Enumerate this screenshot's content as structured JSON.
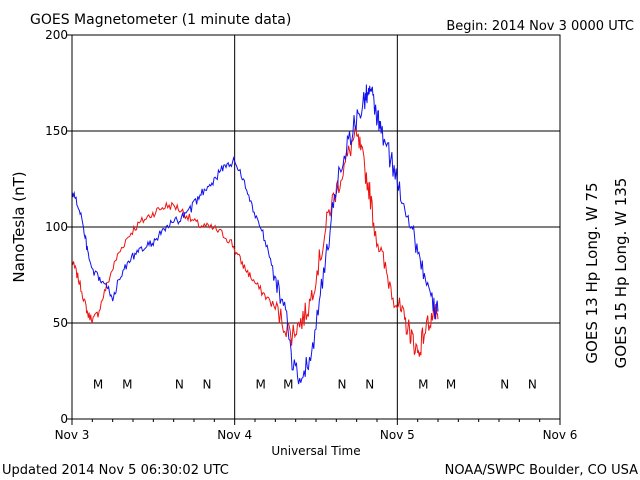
{
  "header": {
    "title": "GOES Magnetometer (1 minute data)",
    "begin": "Begin:  2014 Nov 3 0000 UTC"
  },
  "footer": {
    "updated": "Updated 2014 Nov  5 06:30:02 UTC",
    "credit": "NOAA/SWPC Boulder, CO USA"
  },
  "colors": {
    "goes13": "#ee1111",
    "goes15": "#1111ee",
    "grid": "#000000"
  },
  "chart_data": {
    "type": "line",
    "title": "GOES Magnetometer (1 minute data)",
    "xlabel": "Universal Time",
    "ylabel": "NanoTesla (nT)",
    "x_unit": "days since 2014 Nov 3 00:00 UTC",
    "xlim": [
      0,
      3
    ],
    "ylim": [
      0,
      200
    ],
    "x_ticks": [
      {
        "x": 0,
        "label": "Nov 3"
      },
      {
        "x": 1,
        "label": "Nov 4"
      },
      {
        "x": 2,
        "label": "Nov 5"
      },
      {
        "x": 3,
        "label": "Nov 6"
      }
    ],
    "y_ticks": [
      0,
      50,
      100,
      150,
      200
    ],
    "grid": true,
    "legend_placement": "right, vertical",
    "series": [
      {
        "name": "GOES 13 Hp  Long. W 75",
        "color": "#ee1111",
        "x": [
          0.0,
          0.02,
          0.05,
          0.08,
          0.1,
          0.13,
          0.16,
          0.2,
          0.24,
          0.28,
          0.33,
          0.38,
          0.43,
          0.48,
          0.53,
          0.58,
          0.63,
          0.68,
          0.73,
          0.78,
          0.83,
          0.88,
          0.93,
          0.98,
          1.02,
          1.06,
          1.1,
          1.15,
          1.2,
          1.25,
          1.3,
          1.35,
          1.38,
          1.42,
          1.46,
          1.5,
          1.54,
          1.58,
          1.62,
          1.66,
          1.7,
          1.74,
          1.77,
          1.8,
          1.83,
          1.86,
          1.9,
          1.94,
          1.98,
          2.02,
          2.05,
          2.08,
          2.1,
          2.13,
          2.16,
          2.2,
          2.23,
          2.25
        ],
        "values": [
          82,
          78,
          70,
          60,
          54,
          52,
          55,
          66,
          76,
          85,
          93,
          99,
          103,
          106,
          109,
          111,
          111,
          108,
          104,
          101,
          100,
          99,
          96,
          92,
          85,
          79,
          74,
          68,
          63,
          58,
          50,
          44,
          48,
          52,
          60,
          75,
          90,
          108,
          118,
          128,
          138,
          148,
          142,
          130,
          118,
          100,
          86,
          74,
          64,
          56,
          50,
          45,
          40,
          34,
          44,
          52,
          55,
          52
        ]
      },
      {
        "name": "GOES 15 Hp  Long. W 135",
        "color": "#1111ee",
        "x": [
          0.0,
          0.02,
          0.05,
          0.08,
          0.1,
          0.13,
          0.16,
          0.19,
          0.22,
          0.25,
          0.28,
          0.32,
          0.36,
          0.4,
          0.44,
          0.48,
          0.52,
          0.56,
          0.6,
          0.64,
          0.68,
          0.72,
          0.76,
          0.8,
          0.84,
          0.88,
          0.92,
          0.96,
          1.0,
          1.04,
          1.08,
          1.12,
          1.16,
          1.2,
          1.24,
          1.28,
          1.32,
          1.36,
          1.4,
          1.44,
          1.48,
          1.52,
          1.56,
          1.6,
          1.64,
          1.68,
          1.72,
          1.76,
          1.8,
          1.82,
          1.84,
          1.86,
          1.88,
          1.9,
          1.94,
          1.98,
          2.02,
          2.06,
          2.1,
          2.14,
          2.18,
          2.22,
          2.25
        ],
        "values": [
          118,
          115,
          108,
          95,
          85,
          76,
          74,
          71,
          68,
          63,
          70,
          78,
          84,
          86,
          89,
          91,
          94,
          98,
          101,
          103,
          105,
          108,
          113,
          118,
          122,
          125,
          130,
          133,
          134,
          128,
          117,
          108,
          100,
          90,
          78,
          63,
          52,
          26,
          20,
          28,
          38,
          60,
          82,
          108,
          128,
          140,
          150,
          158,
          166,
          172,
          170,
          162,
          156,
          150,
          140,
          130,
          118,
          108,
          96,
          84,
          70,
          58,
          56
        ]
      }
    ],
    "annotations": [
      {
        "x": 0.16,
        "label": "M",
        "color": "#ee1111"
      },
      {
        "x": 0.34,
        "label": "M",
        "color": "#1111ee"
      },
      {
        "x": 0.66,
        "label": "N",
        "color": "#ee1111"
      },
      {
        "x": 0.83,
        "label": "N",
        "color": "#1111ee"
      },
      {
        "x": 1.16,
        "label": "M",
        "color": "#ee1111"
      },
      {
        "x": 1.33,
        "label": "M",
        "color": "#1111ee"
      },
      {
        "x": 1.66,
        "label": "N",
        "color": "#ee1111"
      },
      {
        "x": 1.83,
        "label": "N",
        "color": "#1111ee"
      },
      {
        "x": 2.16,
        "label": "M",
        "color": "#ee1111"
      },
      {
        "x": 2.33,
        "label": "M",
        "color": "#1111ee"
      },
      {
        "x": 2.66,
        "label": "N",
        "color": "#ee1111"
      },
      {
        "x": 2.83,
        "label": "N",
        "color": "#1111ee"
      }
    ]
  }
}
